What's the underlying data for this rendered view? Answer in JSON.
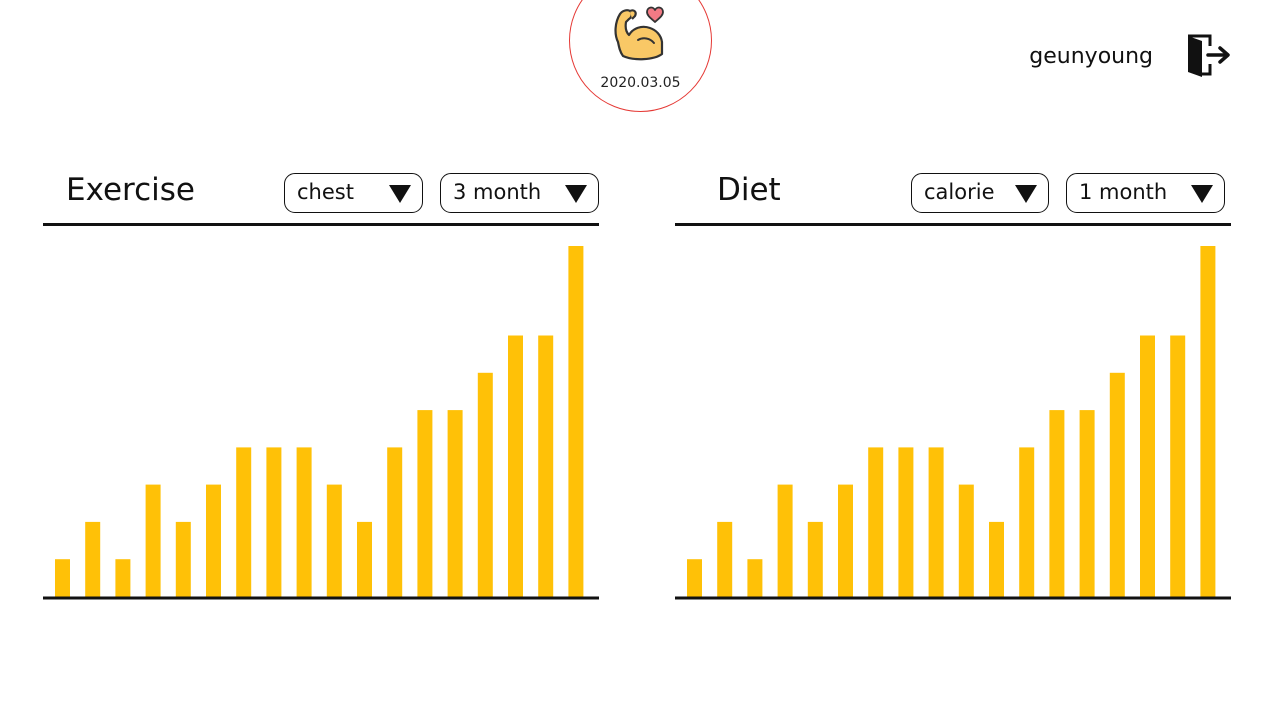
{
  "header": {
    "date": "2020.03.05",
    "logo_icon": "flexed-biceps-heart-icon",
    "username": "geunyoung",
    "logout_icon": "logout-door-icon"
  },
  "colors": {
    "bar": "#FFC107",
    "circle_border": "#E53935",
    "axis": "#111111"
  },
  "exercise": {
    "title": "Exercise",
    "part_select": "chest",
    "period_select": "3 month"
  },
  "diet": {
    "title": "Diet",
    "metric_select": "calorie",
    "period_select": "1 month"
  },
  "chart_data": [
    {
      "type": "bar",
      "panel": "Exercise",
      "values": [
        1,
        2,
        1,
        3,
        2,
        3,
        4,
        4,
        4,
        3,
        2,
        4,
        5,
        5,
        6,
        7,
        7,
        9.4
      ],
      "ylim": [
        0,
        9.4
      ],
      "grid": false
    },
    {
      "type": "bar",
      "panel": "Diet",
      "values": [
        1,
        2,
        1,
        3,
        2,
        3,
        4,
        4,
        4,
        3,
        2,
        4,
        5,
        5,
        6,
        7,
        7,
        9.4
      ],
      "ylim": [
        0,
        9.4
      ],
      "grid": false
    }
  ]
}
